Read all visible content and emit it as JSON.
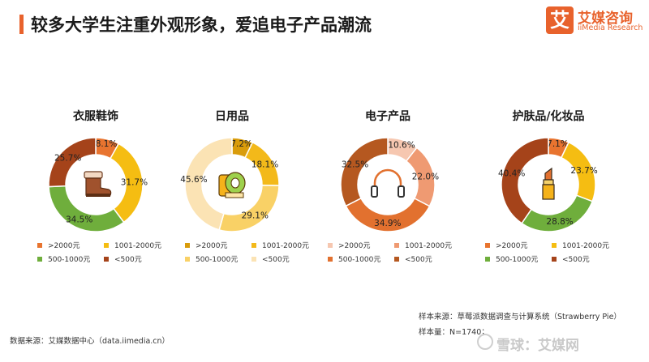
{
  "header": {
    "title": "较多大学生注重外观形象，爱追电子产品潮流",
    "logo_mark": "艾",
    "logo_cn": "艾媒咨询",
    "logo_en": "iiMedia Research"
  },
  "chart_data": [
    {
      "type": "pie",
      "title": "衣服鞋饰",
      "icon": "boot-icon",
      "categories": [
        ">2000元",
        "1001-2000元",
        "500-1000元",
        "<500元"
      ],
      "values": [
        8.1,
        31.7,
        34.5,
        25.7
      ],
      "labels": [
        "8.1%",
        "31.7%",
        "34.5%",
        "25.7%"
      ],
      "colors": [
        "#e8742f",
        "#f5bd12",
        "#6fae3c",
        "#a5431a"
      ]
    },
    {
      "type": "pie",
      "title": "日用品",
      "icon": "toilet-paper-icon",
      "categories": [
        ">2000元",
        "1001-2000元",
        "500-1000元",
        "<500元"
      ],
      "values": [
        7.2,
        18.1,
        29.1,
        45.6
      ],
      "labels": [
        "7.2%",
        "18.1%",
        "29.1%",
        "45.6%"
      ],
      "colors": [
        "#d99c0b",
        "#f3b91a",
        "#f9d166",
        "#fbe3b4"
      ]
    },
    {
      "type": "pie",
      "title": "电子产品",
      "icon": "headphones-icon",
      "categories": [
        ">2000元",
        "1001-2000元",
        "500-1000元",
        "<500元"
      ],
      "values": [
        10.6,
        22.0,
        34.9,
        32.5
      ],
      "labels": [
        "10.6%",
        "22.0%",
        "34.9%",
        "32.5%"
      ],
      "colors": [
        "#f6c7b0",
        "#ef9a72",
        "#e2712f",
        "#b55820"
      ]
    },
    {
      "type": "pie",
      "title": "护肤品/化妆品",
      "icon": "lipstick-icon",
      "categories": [
        ">2000元",
        "1001-2000元",
        "500-1000元",
        "<500元"
      ],
      "values": [
        7.1,
        23.7,
        28.8,
        40.4
      ],
      "labels": [
        "7.1%",
        "23.7%",
        "28.8%",
        "40.4%"
      ],
      "colors": [
        "#e8742f",
        "#f5bd12",
        "#6fae3c",
        "#a5431a"
      ]
    }
  ],
  "footer": {
    "sample_source": "样本来源：草莓派数据调查与计算系统（Strawberry Pie）",
    "sample_size": "样本量：N=1740；",
    "data_source": "数据来源：艾媒数据中心（data.iimedia.cn）",
    "watermark": "雪球：艾媒网"
  }
}
